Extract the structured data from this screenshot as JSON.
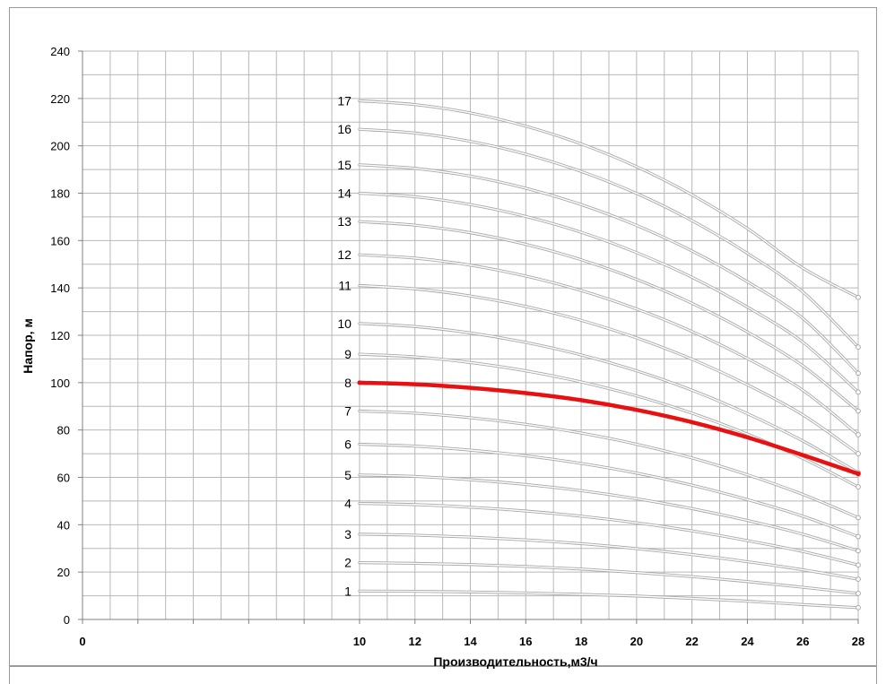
{
  "chart_data": {
    "type": "line",
    "title": "",
    "xlabel": "Производительность,м3/ч",
    "ylabel": "Напор, м",
    "xlim": [
      0,
      28
    ],
    "ylim": [
      0,
      240
    ],
    "x_ticks": [
      0,
      10,
      12,
      14,
      16,
      18,
      20,
      22,
      24,
      26,
      28
    ],
    "y_ticks": [
      0,
      20,
      40,
      60,
      80,
      100,
      120,
      140,
      160,
      180,
      200,
      220,
      240
    ],
    "grid": true,
    "legend": "none",
    "highlight_series": "8",
    "highlight_color": "#e81010",
    "curve_color": "#a8a8a8",
    "x": [
      10,
      12,
      14,
      16,
      18,
      20,
      22,
      24,
      26,
      28
    ],
    "series": [
      {
        "name": "1",
        "values": [
          12,
          11.9,
          11.6,
          11.2,
          10.6,
          9.9,
          8.9,
          7.7,
          6.3,
          5
        ]
      },
      {
        "name": "2",
        "values": [
          24,
          23.7,
          23.2,
          22.4,
          21.3,
          19.8,
          18.1,
          16.0,
          13.6,
          11.0
        ]
      },
      {
        "name": "3",
        "values": [
          36,
          35.6,
          34.8,
          33.6,
          32.0,
          29.9,
          27.4,
          24.4,
          21.0,
          17.0
        ]
      },
      {
        "name": "4",
        "values": [
          49,
          48.5,
          47.4,
          45.8,
          43.6,
          40.8,
          37.4,
          33.3,
          28.7,
          23.0
        ]
      },
      {
        "name": "5",
        "values": [
          61,
          60.4,
          59.0,
          57.0,
          54.4,
          51.0,
          46.8,
          41.8,
          36.0,
          29.0
        ]
      },
      {
        "name": "6",
        "values": [
          74,
          73.2,
          71.5,
          69.1,
          65.9,
          61.8,
          56.7,
          50.6,
          43.6,
          35.0
        ]
      },
      {
        "name": "7",
        "values": [
          88,
          87.1,
          85.2,
          82.4,
          78.7,
          74.0,
          68.2,
          61.1,
          52.8,
          43.0
        ]
      },
      {
        "name": "8",
        "values": [
          100,
          99.3,
          97.8,
          95.6,
          92.6,
          88.5,
          83.3,
          76.9,
          69.4,
          61.5
        ]
      },
      {
        "name": "9",
        "values": [
          112,
          110.9,
          108.5,
          105.0,
          100.3,
          94.4,
          87.1,
          78.3,
          68.0,
          56.0
        ]
      },
      {
        "name": "10",
        "values": [
          125,
          123.7,
          121.0,
          117.0,
          111.7,
          105.0,
          96.8,
          86.9,
          75.4,
          62.0
        ]
      },
      {
        "name": "11",
        "values": [
          141,
          139.6,
          136.6,
          132.2,
          126.3,
          118.9,
          109.9,
          99.1,
          86.4,
          70.0
        ]
      },
      {
        "name": "12",
        "values": [
          154,
          152.6,
          149.6,
          145.0,
          138.9,
          131.1,
          121.6,
          110.2,
          96.8,
          78.0
        ]
      },
      {
        "name": "13",
        "values": [
          168,
          166.5,
          163.3,
          158.4,
          151.9,
          143.6,
          133.5,
          121.4,
          107.1,
          88.0
        ]
      },
      {
        "name": "14",
        "values": [
          180,
          178.5,
          175.2,
          170.2,
          163.5,
          154.9,
          144.5,
          131.9,
          117.1,
          96.0
        ]
      },
      {
        "name": "15",
        "values": [
          192,
          190.5,
          187.2,
          182.1,
          175.2,
          166.4,
          155.6,
          142.6,
          127.2,
          104.0
        ]
      },
      {
        "name": "16",
        "values": [
          207,
          205.4,
          201.9,
          196.5,
          189.2,
          179.9,
          168.4,
          154.6,
          138.3,
          115.0
        ]
      },
      {
        "name": "17",
        "values": [
          219,
          217.4,
          213.9,
          208.3,
          200.8,
          191.2,
          179.3,
          165.1,
          148.4,
          136.0
        ]
      }
    ]
  }
}
